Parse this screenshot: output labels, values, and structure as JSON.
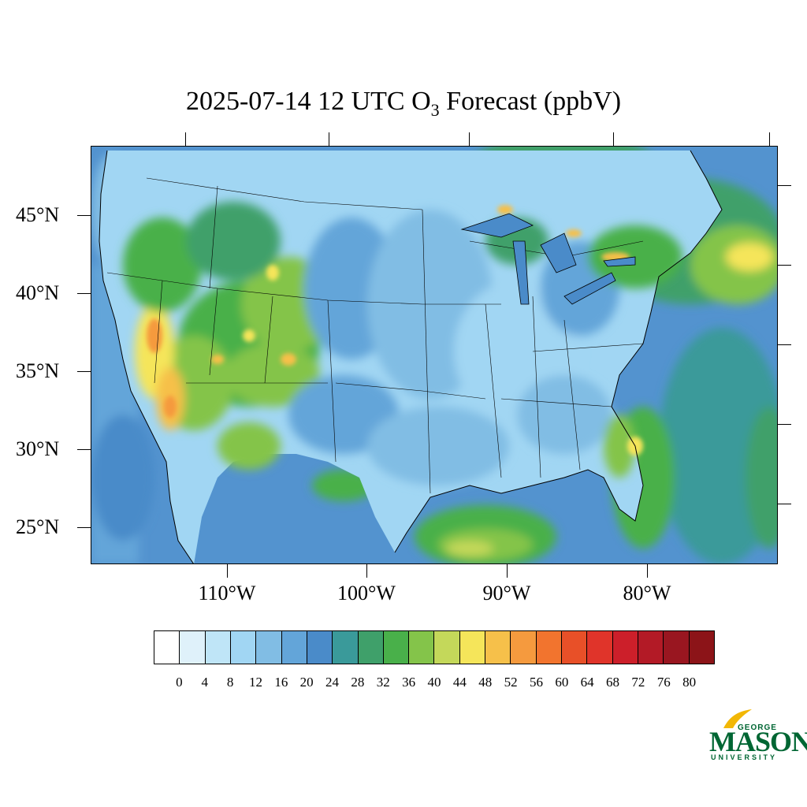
{
  "title": {
    "main": "2025-07-14 12 UTC O",
    "subscript": "3",
    "suffix": " Forecast (ppbV)"
  },
  "map": {
    "lat_labels": [
      "45°N",
      "40°N",
      "35°N",
      "30°N",
      "25°N"
    ],
    "lon_labels": [
      "110°W",
      "100°W",
      "90°W",
      "80°W"
    ],
    "ocean_color": "#4a8bc9",
    "boundary_color": "#000000"
  },
  "colorbar": {
    "labels": [
      "0",
      "4",
      "8",
      "12",
      "16",
      "20",
      "24",
      "28",
      "32",
      "36",
      "40",
      "44",
      "48",
      "52",
      "56",
      "60",
      "64",
      "68",
      "72",
      "76",
      "80"
    ],
    "colors": [
      "#ffffff",
      "#dff1fa",
      "#bfe5f7",
      "#a1d6f3",
      "#81bde4",
      "#63a5d9",
      "#4a8bc9",
      "#3a9a9a",
      "#3fa06a",
      "#49b04a",
      "#84c44a",
      "#c4d85a",
      "#f5e55a",
      "#f6c04a",
      "#f59a3e",
      "#f2742e",
      "#e85028",
      "#e0342a",
      "#cc1f2a",
      "#b31a26",
      "#991620"
    ]
  },
  "logo": {
    "line1": "GEORGE",
    "line2": "MASON",
    "line3": "UNIVERSITY",
    "color": "#006633",
    "accent": "#f2b705"
  }
}
